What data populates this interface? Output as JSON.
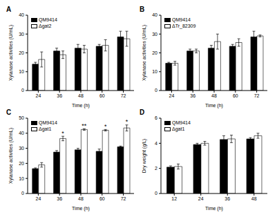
{
  "chart_data": [
    {
      "type": "bar",
      "title": "A",
      "x_label": "Time (h)",
      "y_label": "Xylanase activities (U/mL)",
      "categories": [
        24,
        36,
        48,
        60,
        72
      ],
      "ylim": [
        0,
        40
      ],
      "yticks": [
        0,
        10,
        20,
        30,
        40
      ],
      "legend": "upper left",
      "series": [
        {
          "name": "QM9414",
          "color": "#000000",
          "values": [
            14,
            21,
            22.5,
            23.5,
            28.5
          ],
          "errors": [
            1,
            1.5,
            2,
            1,
            3
          ]
        },
        {
          "name": "Δgat2",
          "color": "#ffffff",
          "values": [
            16.5,
            19,
            22,
            24,
            27.5
          ],
          "errors": [
            4,
            2,
            2,
            3,
            4
          ]
        }
      ]
    },
    {
      "type": "bar",
      "title": "B",
      "x_label": "Time (h)",
      "y_label": "Xylanase activities (U/mL)",
      "categories": [
        24,
        36,
        48,
        60,
        72
      ],
      "ylim": [
        0,
        40
      ],
      "yticks": [
        0,
        10,
        20,
        30,
        40
      ],
      "legend": "upper left",
      "series": [
        {
          "name": "QM9414",
          "color": "#000000",
          "values": [
            14.5,
            21,
            22.5,
            23.5,
            28.5
          ],
          "errors": [
            0.5,
            1,
            1.5,
            1,
            3
          ]
        },
        {
          "name": "ΔTr_82309",
          "color": "#ffffff",
          "values": [
            14.5,
            21,
            26,
            25.5,
            29
          ],
          "errors": [
            1,
            1,
            4,
            2,
            0.5
          ]
        }
      ]
    },
    {
      "type": "bar",
      "title": "C",
      "x_label": "Time (h)",
      "y_label": "Xylanase activities (U/mL)",
      "categories": [
        24,
        36,
        48,
        60,
        72
      ],
      "ylim": [
        0,
        50
      ],
      "yticks": [
        0,
        10,
        20,
        30,
        40,
        50
      ],
      "legend": "upper left",
      "series": [
        {
          "name": "QM9414",
          "color": "#000000",
          "values": [
            16.5,
            27.5,
            29,
            28,
            31
          ],
          "errors": [
            0.5,
            1,
            1,
            1.5,
            0.5
          ]
        },
        {
          "name": "Δgat1",
          "color": "#ffffff",
          "values": [
            19,
            36.5,
            42.5,
            42,
            43.5
          ],
          "errors": [
            1.5,
            1.5,
            0.5,
            0.5,
            2
          ],
          "annotations": [
            null,
            "*",
            "**",
            "*",
            "*"
          ]
        }
      ]
    },
    {
      "type": "bar",
      "title": "D",
      "x_label": "Time (h)",
      "y_label": "Dry weight (g/L)",
      "categories": [
        12,
        24,
        36,
        48
      ],
      "ylim": [
        0,
        6
      ],
      "yticks": [
        0,
        2,
        4,
        6
      ],
      "legend": "upper left",
      "series": [
        {
          "name": "QM9414",
          "color": "#000000",
          "values": [
            2.1,
            3.9,
            4.3,
            4.35
          ],
          "errors": [
            0.1,
            0.1,
            0.3,
            0.1
          ]
        },
        {
          "name": "Δgat1",
          "color": "#ffffff",
          "values": [
            2.15,
            4.0,
            4.35,
            4.6
          ],
          "errors": [
            0.2,
            0.15,
            0.3,
            0.2
          ]
        }
      ]
    }
  ]
}
